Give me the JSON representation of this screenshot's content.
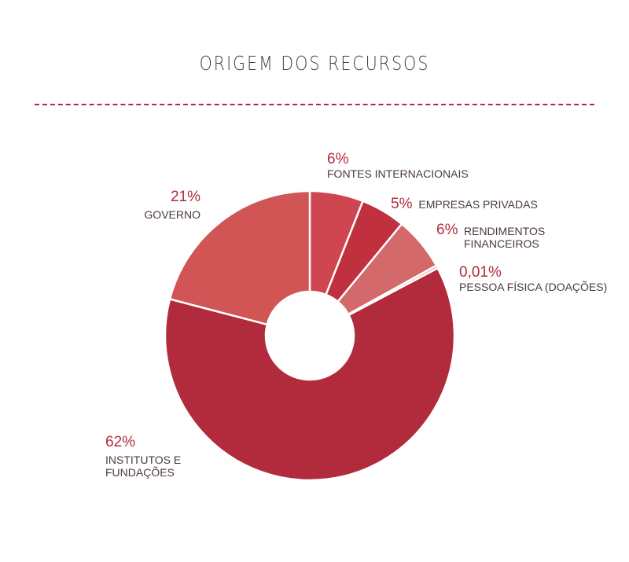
{
  "title": "ORIGEM DOS RECURSOS",
  "colors": {
    "accent": "#b22b3d",
    "text": "#4a3a3c"
  },
  "chart_data": {
    "type": "pie",
    "title": "ORIGEM DOS RECURSOS",
    "donut": true,
    "slices": [
      {
        "key": "fontes",
        "pct_label": "6%",
        "label": "FONTES INTERNACIONAIS",
        "value": 6,
        "color": "#cf4550"
      },
      {
        "key": "empresas",
        "pct_label": "5%",
        "label": "EMPRESAS PRIVADAS",
        "value": 5,
        "color": "#c0303f"
      },
      {
        "key": "rendimentos",
        "pct_label": "6%",
        "label": "RENDIMENTOS FINANCEIROS",
        "value": 6,
        "color": "#d3696b"
      },
      {
        "key": "pessoa",
        "pct_label": "0,01%",
        "label": "PESSOA FÍSICA (DOAÇÕES)",
        "value": 0.01,
        "color": "#e2a0a0"
      },
      {
        "key": "institutos",
        "pct_label": "62%",
        "label": "INSTITUTOS E FUNDAÇÕES",
        "value": 62,
        "color": "#b22b3d"
      },
      {
        "key": "governo",
        "pct_label": "21%",
        "label": "GOVERNO",
        "value": 21,
        "color": "#d05554"
      }
    ]
  }
}
